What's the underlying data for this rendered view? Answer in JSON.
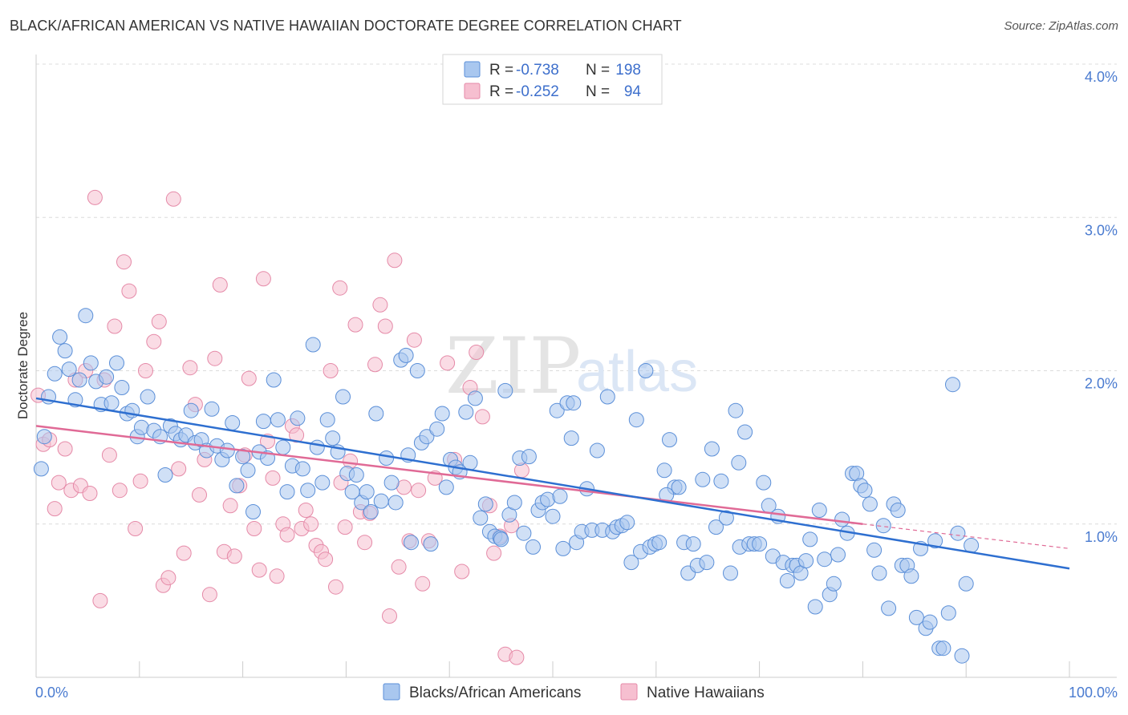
{
  "header": {
    "title": "BLACK/AFRICAN AMERICAN VS NATIVE HAWAIIAN DOCTORATE DEGREE CORRELATION CHART",
    "source": "Source: ZipAtlas.com"
  },
  "watermark": {
    "zip": "ZIP",
    "atlas": "atlas"
  },
  "legend": {
    "r_label": "R =",
    "n_label": "N =",
    "entries": [
      {
        "r": "-0.738",
        "n": "198"
      },
      {
        "r": "-0.252",
        "n": "94"
      }
    ]
  },
  "bottom_legend": [
    {
      "label": "Blacks/African Americans"
    },
    {
      "label": "Native Hawaiians"
    }
  ],
  "colors": {
    "blue_fill": "#a9c7ef",
    "blue_stroke": "#5b8fd8",
    "blue_line": "#2e6fd0",
    "pink_fill": "#f6bfd0",
    "pink_stroke": "#e58aa8",
    "pink_line": "#e06a96"
  },
  "chart_data": {
    "type": "scatter",
    "ylabel": "Doctorate Degree",
    "xlim": [
      0,
      100
    ],
    "ylim": [
      0,
      4.0
    ],
    "x_tick_labels": [
      "0.0%",
      "100.0%"
    ],
    "y_ticks": [
      {
        "value": 1.0,
        "label": "1.0%"
      },
      {
        "value": 2.0,
        "label": "2.0%"
      },
      {
        "value": 3.0,
        "label": "3.0%"
      },
      {
        "value": 4.0,
        "label": "4.0%"
      }
    ],
    "grid": true,
    "series": [
      {
        "name": "Blacks/African Americans",
        "trend": {
          "x0": 0,
          "y0": 1.82,
          "x1": 100,
          "y1": 0.71,
          "solid_to": 100
        },
        "points": [
          [
            0.5,
            1.36
          ],
          [
            0.8,
            1.57
          ],
          [
            1.2,
            1.83
          ],
          [
            1.8,
            1.98
          ],
          [
            2.3,
            2.22
          ],
          [
            2.8,
            2.13
          ],
          [
            3.2,
            2.01
          ],
          [
            3.8,
            1.81
          ],
          [
            4.2,
            1.94
          ],
          [
            4.8,
            2.36
          ],
          [
            5.3,
            2.05
          ],
          [
            5.8,
            1.93
          ],
          [
            6.3,
            1.78
          ],
          [
            6.8,
            1.96
          ],
          [
            7.3,
            1.79
          ],
          [
            7.8,
            2.05
          ],
          [
            8.3,
            1.89
          ],
          [
            8.8,
            1.72
          ],
          [
            9.3,
            1.74
          ],
          [
            9.8,
            1.57
          ],
          [
            10.2,
            1.63
          ],
          [
            10.8,
            1.83
          ],
          [
            11.4,
            1.61
          ],
          [
            12.0,
            1.57
          ],
          [
            12.5,
            1.32
          ],
          [
            13.0,
            1.64
          ],
          [
            13.5,
            1.59
          ],
          [
            14.0,
            1.55
          ],
          [
            14.5,
            1.58
          ],
          [
            15.0,
            1.74
          ],
          [
            15.4,
            1.53
          ],
          [
            16.0,
            1.55
          ],
          [
            16.5,
            1.48
          ],
          [
            17.0,
            1.75
          ],
          [
            17.5,
            1.51
          ],
          [
            18.0,
            1.42
          ],
          [
            18.5,
            1.48
          ],
          [
            19.0,
            1.66
          ],
          [
            19.4,
            1.25
          ],
          [
            20.0,
            1.44
          ],
          [
            20.5,
            1.35
          ],
          [
            21.0,
            1.08
          ],
          [
            21.6,
            1.47
          ],
          [
            22.0,
            1.67
          ],
          [
            22.4,
            1.43
          ],
          [
            23.0,
            1.94
          ],
          [
            23.4,
            1.68
          ],
          [
            23.9,
            1.5
          ],
          [
            24.3,
            1.21
          ],
          [
            24.8,
            1.38
          ],
          [
            25.3,
            1.69
          ],
          [
            25.8,
            1.36
          ],
          [
            26.3,
            1.22
          ],
          [
            26.8,
            2.17
          ],
          [
            27.2,
            1.5
          ],
          [
            27.7,
            1.27
          ],
          [
            28.2,
            1.68
          ],
          [
            28.7,
            1.56
          ],
          [
            29.2,
            1.47
          ],
          [
            29.7,
            1.83
          ],
          [
            30.1,
            1.33
          ],
          [
            30.6,
            1.21
          ],
          [
            31.0,
            1.32
          ],
          [
            31.5,
            1.14
          ],
          [
            32.0,
            1.21
          ],
          [
            32.4,
            1.08
          ],
          [
            32.9,
            1.72
          ],
          [
            33.4,
            1.15
          ],
          [
            33.9,
            1.43
          ],
          [
            34.4,
            1.27
          ],
          [
            34.8,
            1.14
          ],
          [
            35.3,
            2.07
          ],
          [
            35.8,
            2.1
          ],
          [
            36.3,
            0.88
          ],
          [
            36.9,
            2.0
          ],
          [
            37.3,
            1.53
          ],
          [
            37.8,
            1.57
          ],
          [
            38.2,
            0.87
          ],
          [
            38.8,
            1.62
          ],
          [
            39.3,
            1.72
          ],
          [
            39.7,
            1.24
          ],
          [
            40.1,
            1.42
          ],
          [
            40.6,
            1.37
          ],
          [
            41.0,
            1.34
          ],
          [
            41.6,
            1.73
          ],
          [
            42.0,
            1.4
          ],
          [
            42.5,
            1.82
          ],
          [
            43.0,
            1.04
          ],
          [
            43.5,
            1.13
          ],
          [
            43.9,
            0.95
          ],
          [
            44.4,
            0.92
          ],
          [
            44.9,
            0.91
          ],
          [
            45.4,
            1.87
          ],
          [
            45.8,
            1.06
          ],
          [
            46.3,
            1.14
          ],
          [
            46.8,
            1.43
          ],
          [
            47.2,
            0.94
          ],
          [
            47.7,
            1.44
          ],
          [
            48.1,
            0.85
          ],
          [
            48.6,
            1.09
          ],
          [
            49.0,
            1.14
          ],
          [
            49.5,
            1.16
          ],
          [
            50.0,
            1.05
          ],
          [
            50.4,
            1.74
          ],
          [
            51.0,
            0.84
          ],
          [
            51.4,
            1.79
          ],
          [
            51.8,
            1.56
          ],
          [
            52.3,
            0.88
          ],
          [
            52.8,
            0.95
          ],
          [
            53.3,
            1.23
          ],
          [
            53.8,
            0.96
          ],
          [
            54.3,
            1.48
          ],
          [
            54.8,
            0.96
          ],
          [
            55.3,
            1.83
          ],
          [
            55.8,
            0.95
          ],
          [
            56.2,
            0.98
          ],
          [
            56.7,
            0.99
          ],
          [
            57.2,
            1.01
          ],
          [
            57.6,
            0.75
          ],
          [
            58.1,
            1.68
          ],
          [
            58.5,
            0.82
          ],
          [
            59.0,
            2.0
          ],
          [
            59.4,
            0.85
          ],
          [
            59.9,
            0.87
          ],
          [
            60.3,
            0.88
          ],
          [
            60.8,
            1.35
          ],
          [
            61.3,
            1.55
          ],
          [
            61.8,
            1.24
          ],
          [
            62.2,
            1.24
          ],
          [
            62.7,
            0.88
          ],
          [
            63.1,
            0.68
          ],
          [
            63.6,
            0.87
          ],
          [
            64.0,
            0.73
          ],
          [
            64.5,
            1.29
          ],
          [
            64.9,
            0.75
          ],
          [
            65.4,
            1.49
          ],
          [
            65.8,
            0.98
          ],
          [
            66.3,
            1.28
          ],
          [
            66.8,
            1.04
          ],
          [
            67.2,
            0.68
          ],
          [
            67.7,
            1.74
          ],
          [
            68.1,
            0.85
          ],
          [
            68.6,
            1.6
          ],
          [
            69.0,
            0.87
          ],
          [
            69.5,
            0.87
          ],
          [
            70.0,
            0.87
          ],
          [
            70.4,
            1.27
          ],
          [
            70.9,
            1.12
          ],
          [
            71.3,
            0.79
          ],
          [
            71.8,
            1.05
          ],
          [
            72.3,
            0.75
          ],
          [
            72.7,
            0.63
          ],
          [
            73.2,
            0.73
          ],
          [
            73.6,
            0.73
          ],
          [
            74.0,
            0.68
          ],
          [
            74.5,
            0.76
          ],
          [
            74.9,
            0.9
          ],
          [
            75.4,
            0.46
          ],
          [
            75.8,
            1.09
          ],
          [
            76.3,
            0.77
          ],
          [
            76.8,
            0.54
          ],
          [
            77.2,
            0.61
          ],
          [
            77.6,
            0.8
          ],
          [
            78.0,
            1.03
          ],
          [
            78.5,
            0.94
          ],
          [
            79.0,
            1.33
          ],
          [
            79.4,
            1.33
          ],
          [
            79.8,
            1.25
          ],
          [
            80.2,
            1.22
          ],
          [
            80.7,
            1.13
          ],
          [
            81.1,
            0.83
          ],
          [
            81.6,
            0.68
          ],
          [
            82.0,
            0.99
          ],
          [
            82.5,
            0.45
          ],
          [
            83.0,
            1.13
          ],
          [
            83.4,
            1.09
          ],
          [
            83.8,
            0.73
          ],
          [
            84.3,
            0.73
          ],
          [
            84.7,
            0.66
          ],
          [
            85.2,
            0.39
          ],
          [
            85.6,
            0.84
          ],
          [
            86.1,
            0.32
          ],
          [
            86.5,
            0.36
          ],
          [
            87.0,
            0.89
          ],
          [
            87.4,
            0.19
          ],
          [
            87.8,
            0.19
          ],
          [
            88.3,
            0.42
          ],
          [
            88.7,
            1.91
          ],
          [
            89.2,
            0.94
          ],
          [
            89.6,
            0.14
          ],
          [
            90.0,
            0.61
          ],
          [
            90.5,
            0.86
          ],
          [
            45.0,
            0.9
          ],
          [
            36.0,
            1.45
          ],
          [
            52.0,
            1.79
          ],
          [
            61.0,
            1.19
          ],
          [
            68.0,
            1.4
          ],
          [
            50.7,
            1.18
          ]
        ]
      },
      {
        "name": "Native Hawaiians",
        "trend": {
          "x0": 0,
          "y0": 1.64,
          "x1": 100,
          "y1": 0.84,
          "solid_to": 80
        },
        "points": [
          [
            0.2,
            1.84
          ],
          [
            0.7,
            1.52
          ],
          [
            1.3,
            1.55
          ],
          [
            1.8,
            1.1
          ],
          [
            2.2,
            1.27
          ],
          [
            2.8,
            1.49
          ],
          [
            3.4,
            1.22
          ],
          [
            3.8,
            1.94
          ],
          [
            4.3,
            1.25
          ],
          [
            4.8,
            2.0
          ],
          [
            5.2,
            1.2
          ],
          [
            5.7,
            3.13
          ],
          [
            6.2,
            0.5
          ],
          [
            6.6,
            1.94
          ],
          [
            7.1,
            1.45
          ],
          [
            7.6,
            2.29
          ],
          [
            8.1,
            1.22
          ],
          [
            8.5,
            2.71
          ],
          [
            9.0,
            2.52
          ],
          [
            9.6,
            0.97
          ],
          [
            10.1,
            1.28
          ],
          [
            10.6,
            2.0
          ],
          [
            11.4,
            2.19
          ],
          [
            11.9,
            2.32
          ],
          [
            12.3,
            0.6
          ],
          [
            12.8,
            0.65
          ],
          [
            13.3,
            3.12
          ],
          [
            13.8,
            1.36
          ],
          [
            14.3,
            0.81
          ],
          [
            14.9,
            2.02
          ],
          [
            15.4,
            1.78
          ],
          [
            15.8,
            1.19
          ],
          [
            16.3,
            1.42
          ],
          [
            16.8,
            0.54
          ],
          [
            17.3,
            2.08
          ],
          [
            17.8,
            2.56
          ],
          [
            18.2,
            0.82
          ],
          [
            18.8,
            1.12
          ],
          [
            19.2,
            0.79
          ],
          [
            19.7,
            1.25
          ],
          [
            20.2,
            1.45
          ],
          [
            20.6,
            1.95
          ],
          [
            21.1,
            0.97
          ],
          [
            21.6,
            0.7
          ],
          [
            22.0,
            2.6
          ],
          [
            22.4,
            1.54
          ],
          [
            22.9,
            1.3
          ],
          [
            23.3,
            0.66
          ],
          [
            23.9,
            1.0
          ],
          [
            24.3,
            0.93
          ],
          [
            24.8,
            1.64
          ],
          [
            25.2,
            1.58
          ],
          [
            25.7,
            0.97
          ],
          [
            26.1,
            1.09
          ],
          [
            26.6,
            1.0
          ],
          [
            27.1,
            0.86
          ],
          [
            27.6,
            0.82
          ],
          [
            28.0,
            0.77
          ],
          [
            28.5,
            2.0
          ],
          [
            29.0,
            0.59
          ],
          [
            29.4,
            2.54
          ],
          [
            29.9,
            0.98
          ],
          [
            30.4,
            1.41
          ],
          [
            30.9,
            2.3
          ],
          [
            31.4,
            1.08
          ],
          [
            31.8,
            0.88
          ],
          [
            32.3,
            1.07
          ],
          [
            32.8,
            2.04
          ],
          [
            33.3,
            2.43
          ],
          [
            33.8,
            2.29
          ],
          [
            34.2,
            0.4
          ],
          [
            34.7,
            2.72
          ],
          [
            35.1,
            0.72
          ],
          [
            35.6,
            1.24
          ],
          [
            36.1,
            0.89
          ],
          [
            36.6,
            2.2
          ],
          [
            37.0,
            1.22
          ],
          [
            37.4,
            0.61
          ],
          [
            38.0,
            0.89
          ],
          [
            38.6,
            1.3
          ],
          [
            39.8,
            2.05
          ],
          [
            40.5,
            1.42
          ],
          [
            41.2,
            0.69
          ],
          [
            42.0,
            1.89
          ],
          [
            42.6,
            2.12
          ],
          [
            43.2,
            1.7
          ],
          [
            43.9,
            1.12
          ],
          [
            44.3,
            0.81
          ],
          [
            44.9,
            0.92
          ],
          [
            45.4,
            0.15
          ],
          [
            46.0,
            0.99
          ],
          [
            46.5,
            0.13
          ],
          [
            47.0,
            1.35
          ],
          [
            29.5,
            1.27
          ]
        ]
      }
    ]
  }
}
